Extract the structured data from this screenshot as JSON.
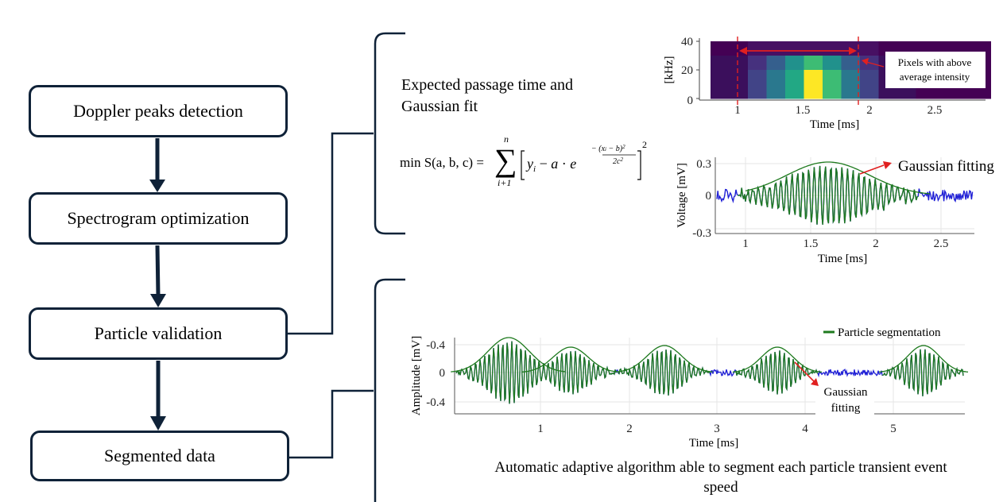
{
  "flow": {
    "steps": [
      "Doppler peaks detection",
      "Spectrogram optimization",
      "Particle validation",
      "Segmented data"
    ]
  },
  "formula": {
    "caption_line1": "Expected passage time and",
    "caption_line2": "Gaussian fit",
    "lhs": "min S(a, b, c) =",
    "sum_top": "n",
    "sum_bottom": "i+1"
  },
  "spectrogram": {
    "ylabel": "[kHz]",
    "xlabel": "Time [ms]",
    "yticks": [
      "40",
      "20",
      "0"
    ],
    "xticks": [
      "1",
      "1.5",
      "2",
      "2.5"
    ],
    "annotation_line1": "Pixels with above",
    "annotation_line2": "average intensity"
  },
  "voltage_plot": {
    "ylabel": "Voltage [mV]",
    "xlabel": "Time [ms]",
    "yticks": [
      "0.3",
      "0",
      "-0.3"
    ],
    "xticks": [
      "1",
      "1.5",
      "2",
      "2.5"
    ],
    "annotation": "Gaussian fitting"
  },
  "amplitude_plot": {
    "ylabel": "Amplitude [mV]",
    "xlabel": "Time [ms]",
    "yticks": [
      "-0.4",
      "0",
      "-0.4"
    ],
    "xticks": [
      "1",
      "2",
      "3",
      "4",
      "5"
    ],
    "legend": "Particle segmentation",
    "annotation_line1": "Gaussian",
    "annotation_line2": "fitting"
  },
  "caption": {
    "line1": "Automatic adaptive algorithm able to segment each particle transient event",
    "line2": "speed"
  },
  "colors": {
    "box_border": "#0f2238",
    "signal_blue": "#1f1fd6",
    "signal_green": "#1e7a1e",
    "arrow_red": "#e02020"
  }
}
